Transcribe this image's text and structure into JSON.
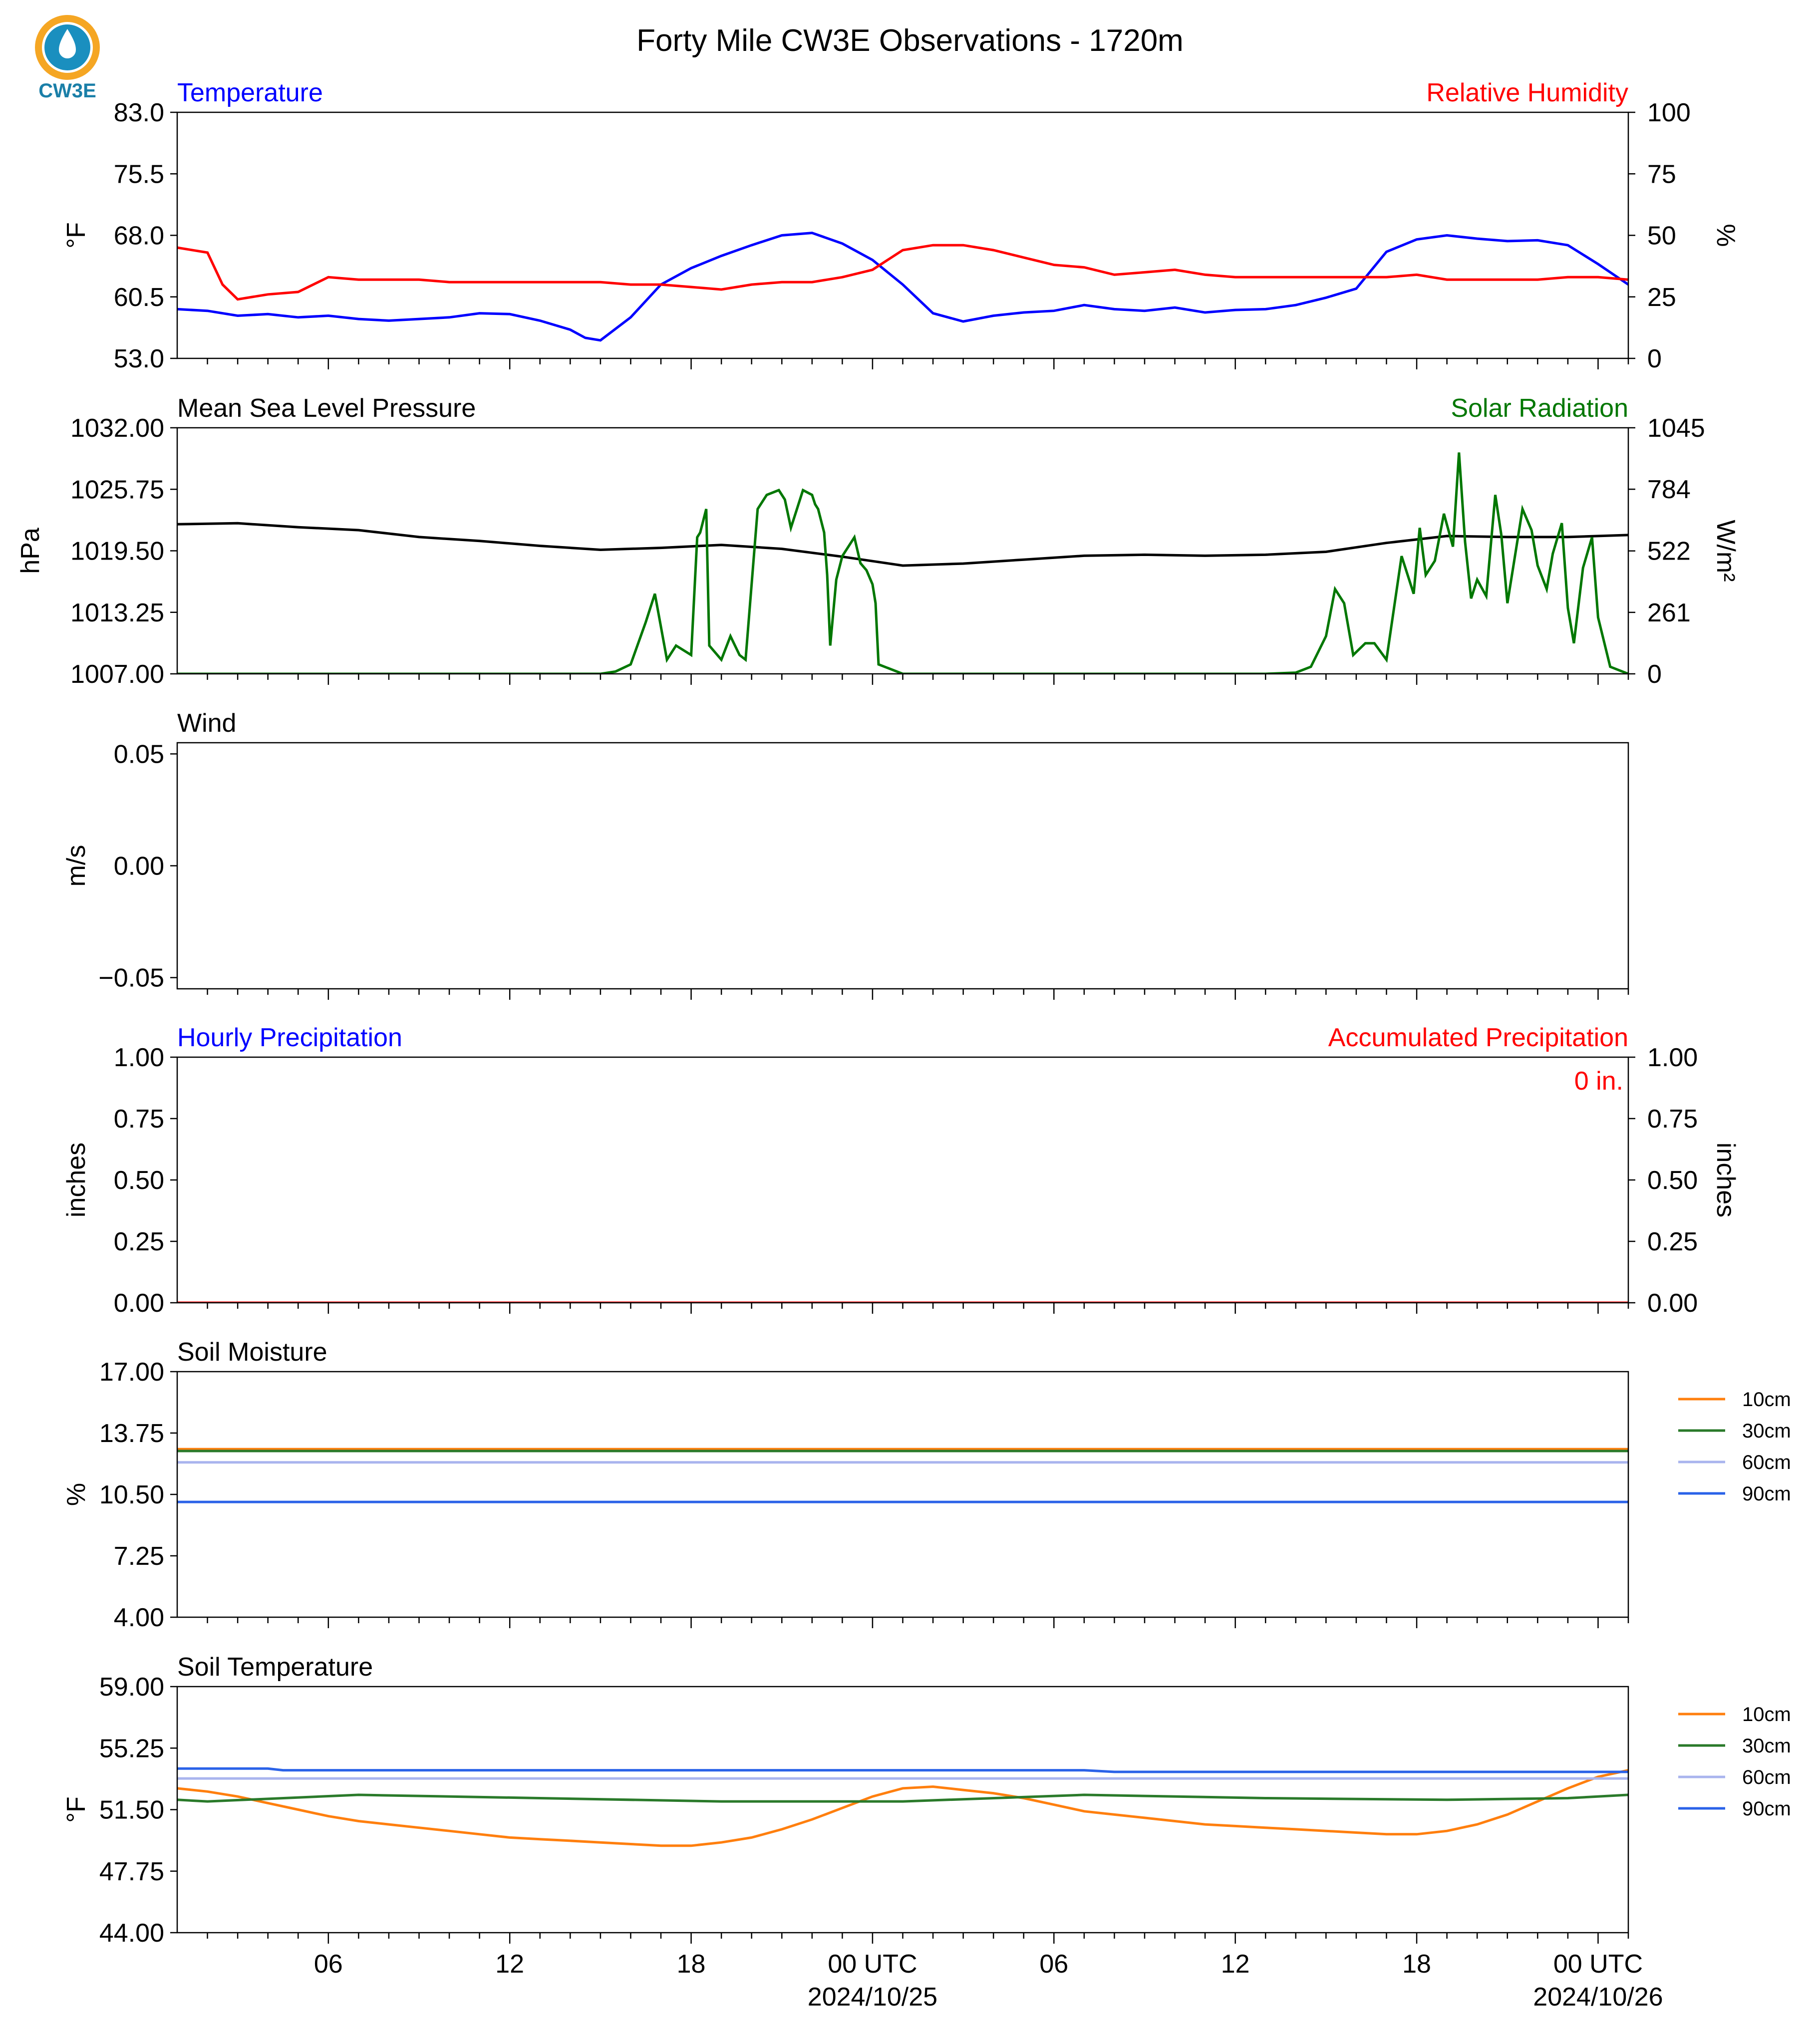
{
  "title": "Forty Mile CW3E Observations - 1720m",
  "logo": {
    "text": "CW3E",
    "icon": "cw3e-drop-logo",
    "colors": {
      "ring": "#f5a623",
      "drop": "#1a8fbf",
      "text": "#1a7fa8"
    }
  },
  "x_axis": {
    "range_hours": [
      0,
      48
    ],
    "tick_hours": [
      5,
      11,
      17,
      23,
      29,
      35,
      41,
      47
    ],
    "tick_labels": [
      "06",
      "12",
      "18",
      "00 UTC",
      "06",
      "12",
      "18",
      "00 UTC"
    ],
    "date_labels": [
      {
        "hour": 23,
        "text": "2024/10/25"
      },
      {
        "hour": 47,
        "text": "2024/10/26"
      }
    ]
  },
  "chart_data": [
    {
      "type": "line",
      "title_left": "Temperature",
      "title_right": "Relative Humidity",
      "ylabel_left": "°F",
      "ylabel_right": "%",
      "ylim_left": [
        53.0,
        83.0
      ],
      "yticks_left": [
        "53.0",
        "60.5",
        "68.0",
        "75.5",
        "83.0"
      ],
      "ylim_right": [
        0,
        100
      ],
      "yticks_right": [
        "0",
        "25",
        "50",
        "75",
        "100"
      ],
      "series": [
        {
          "name": "Temperature",
          "axis": "left",
          "color": "#0000ff",
          "x": [
            0,
            1,
            2,
            3,
            4,
            5,
            6,
            7,
            8,
            9,
            10,
            11,
            12,
            13,
            13.5,
            14,
            15,
            16,
            17,
            18,
            19,
            20,
            21,
            22,
            23,
            24,
            25,
            26,
            27,
            28,
            29,
            30,
            31,
            32,
            33,
            34,
            35,
            36,
            37,
            38,
            39,
            40,
            41,
            42,
            43,
            44,
            45,
            46,
            47,
            48
          ],
          "y": [
            59.0,
            58.8,
            58.2,
            58.4,
            58.0,
            58.2,
            57.8,
            57.6,
            57.8,
            58.0,
            58.5,
            58.4,
            57.6,
            56.5,
            55.5,
            55.2,
            58.0,
            62.0,
            64.0,
            65.5,
            66.8,
            68.0,
            68.3,
            67.0,
            65.0,
            62.0,
            58.5,
            57.5,
            58.2,
            58.6,
            58.8,
            59.5,
            59.0,
            58.8,
            59.2,
            58.6,
            58.9,
            59.0,
            59.5,
            60.4,
            61.5,
            66.0,
            67.5,
            68.0,
            67.6,
            67.3,
            67.4,
            66.8,
            64.5,
            62.0
          ]
        },
        {
          "name": "Relative Humidity",
          "axis": "right",
          "color": "#ff0000",
          "x": [
            0,
            1,
            1.5,
            2,
            3,
            4,
            5,
            6,
            7,
            8,
            9,
            10,
            11,
            12,
            13,
            14,
            15,
            16,
            17,
            18,
            19,
            20,
            21,
            22,
            23,
            24,
            25,
            26,
            27,
            28,
            29,
            30,
            31,
            32,
            33,
            34,
            35,
            36,
            37,
            38,
            39,
            40,
            41,
            42,
            43,
            44,
            45,
            46,
            47,
            48
          ],
          "y": [
            45,
            43,
            30,
            24,
            26,
            27,
            33,
            32,
            32,
            32,
            31,
            31,
            31,
            31,
            31,
            31,
            30,
            30,
            29,
            28,
            30,
            31,
            31,
            33,
            36,
            44,
            46,
            46,
            44,
            41,
            38,
            37,
            34,
            35,
            36,
            34,
            33,
            33,
            33,
            33,
            33,
            33,
            34,
            32,
            32,
            32,
            32,
            33,
            33,
            32
          ]
        }
      ]
    },
    {
      "type": "line",
      "title_left": "Mean Sea Level Pressure",
      "title_right": "Solar Radiation",
      "ylabel_left": "hPa",
      "ylabel_right": "W/m²",
      "ylim_left": [
        1007.0,
        1032.0
      ],
      "yticks_left": [
        "1007.00",
        "1013.25",
        "1019.50",
        "1025.75",
        "1032.00"
      ],
      "ylim_right": [
        0,
        1045
      ],
      "yticks_right": [
        "0",
        "261",
        "522",
        "784",
        "1045"
      ],
      "series": [
        {
          "name": "Mean Sea Level Pressure",
          "axis": "left",
          "color": "#000000",
          "x": [
            0,
            2,
            4,
            6,
            8,
            10,
            12,
            14,
            16,
            18,
            20,
            22,
            24,
            26,
            28,
            30,
            32,
            34,
            36,
            38,
            40,
            42,
            44,
            46,
            48
          ],
          "y": [
            1022.2,
            1022.3,
            1021.9,
            1021.6,
            1020.9,
            1020.5,
            1020.0,
            1019.6,
            1019.8,
            1020.1,
            1019.7,
            1018.9,
            1018.0,
            1018.2,
            1018.6,
            1019.0,
            1019.1,
            1019.0,
            1019.1,
            1019.4,
            1020.3,
            1021.0,
            1020.9,
            1020.9,
            1021.1
          ]
        },
        {
          "name": "Solar Radiation",
          "axis": "right",
          "color": "#007700",
          "x": [
            0,
            13,
            14,
            14.5,
            15,
            15.5,
            15.8,
            16,
            16.2,
            16.5,
            17,
            17.2,
            17.3,
            17.5,
            17.6,
            18,
            18.3,
            18.6,
            18.8,
            19.2,
            19.5,
            19.9,
            20.1,
            20.3,
            20.5,
            20.7,
            21,
            21.1,
            21.2,
            21.4,
            21.5,
            21.6,
            21.8,
            22,
            22.4,
            22.6,
            22.8,
            23,
            23.1,
            23.2,
            24,
            26,
            36,
            37,
            37.5,
            38,
            38.3,
            38.6,
            38.9,
            39.3,
            39.6,
            40,
            40.5,
            40.9,
            41.1,
            41.3,
            41.6,
            41.9,
            42.2,
            42.4,
            42.6,
            42.8,
            43,
            43.3,
            43.6,
            43.8,
            44,
            44.2,
            44.5,
            44.8,
            45,
            45.3,
            45.5,
            45.8,
            46,
            46.2,
            46.5,
            46.8,
            47,
            47.4,
            47.8,
            48
          ],
          "y": [
            0,
            0,
            0,
            10,
            40,
            220,
            340,
            200,
            60,
            120,
            80,
            580,
            600,
            700,
            120,
            60,
            160,
            80,
            60,
            700,
            760,
            780,
            740,
            620,
            700,
            780,
            760,
            720,
            700,
            600,
            420,
            120,
            400,
            500,
            580,
            470,
            440,
            380,
            300,
            40,
            0,
            0,
            0,
            5,
            30,
            160,
            360,
            300,
            80,
            130,
            130,
            60,
            500,
            340,
            620,
            420,
            480,
            680,
            540,
            940,
            560,
            320,
            400,
            330,
            760,
            590,
            300,
            460,
            700,
            610,
            460,
            360,
            510,
            640,
            280,
            130,
            450,
            580,
            240,
            30,
            10,
            0
          ]
        }
      ]
    },
    {
      "type": "line",
      "title_left": "Wind",
      "ylabel_left": "m/s",
      "ylim_left": [
        -0.055,
        0.055
      ],
      "yticks_left": [
        "−0.05",
        "0.00",
        "0.05"
      ],
      "series": []
    },
    {
      "type": "line",
      "title_left": "Hourly Precipitation",
      "title_right": "Accumulated Precipitation",
      "annotation": "0 in.",
      "ylabel_left": "inches",
      "ylabel_right": "inches",
      "ylim_left": [
        0.0,
        1.0
      ],
      "yticks_left": [
        "0.00",
        "0.25",
        "0.50",
        "0.75",
        "1.00"
      ],
      "ylim_right": [
        0.0,
        1.0
      ],
      "yticks_right": [
        "0.00",
        "0.25",
        "0.50",
        "0.75",
        "1.00"
      ],
      "series": [
        {
          "name": "Hourly Precipitation",
          "axis": "left",
          "color": "#0000ff",
          "x": [
            0,
            48
          ],
          "y": [
            0.0,
            0.0
          ]
        },
        {
          "name": "Accumulated Precipitation",
          "axis": "right",
          "color": "#ff0000",
          "x": [
            0,
            48
          ],
          "y": [
            0.0,
            0.0
          ]
        }
      ]
    },
    {
      "type": "line",
      "title_left": "Soil Moisture",
      "ylabel_left": "%",
      "ylim_left": [
        4.0,
        17.0
      ],
      "yticks_left": [
        "4.00",
        "7.25",
        "10.50",
        "13.75",
        "17.00"
      ],
      "legend": [
        "10cm",
        "30cm",
        "60cm",
        "90cm"
      ],
      "legend_placement": "right-outside",
      "series": [
        {
          "name": "10cm",
          "color": "#ff7f0e",
          "x": [
            0,
            48
          ],
          "y": [
            12.9,
            12.9
          ]
        },
        {
          "name": "30cm",
          "color": "#2a7a2a",
          "x": [
            0,
            48
          ],
          "y": [
            12.8,
            12.8
          ]
        },
        {
          "name": "60cm",
          "color": "#a9b4ee",
          "x": [
            0,
            48
          ],
          "y": [
            12.2,
            12.2
          ]
        },
        {
          "name": "90cm",
          "color": "#2a62e8",
          "x": [
            0,
            48
          ],
          "y": [
            10.1,
            10.1
          ]
        }
      ]
    },
    {
      "type": "line",
      "title_left": "Soil Temperature",
      "ylabel_left": "°F",
      "ylim_left": [
        44.0,
        59.0
      ],
      "yticks_left": [
        "44.00",
        "47.75",
        "51.50",
        "55.25",
        "59.00"
      ],
      "legend": [
        "10cm",
        "30cm",
        "60cm",
        "90cm"
      ],
      "legend_placement": "right-outside",
      "series": [
        {
          "name": "10cm",
          "color": "#ff7f0e",
          "x": [
            0,
            1,
            2,
            3,
            4,
            5,
            6,
            7,
            8,
            9,
            10,
            11,
            12,
            13,
            14,
            15,
            16,
            17,
            18,
            19,
            20,
            21,
            22,
            23,
            24,
            25,
            26,
            27,
            28,
            29,
            30,
            31,
            32,
            33,
            34,
            35,
            36,
            37,
            38,
            39,
            40,
            41,
            42,
            43,
            44,
            45,
            46,
            47,
            48
          ],
          "y": [
            52.8,
            52.6,
            52.3,
            51.9,
            51.5,
            51.1,
            50.8,
            50.6,
            50.4,
            50.2,
            50.0,
            49.8,
            49.7,
            49.6,
            49.5,
            49.4,
            49.3,
            49.3,
            49.5,
            49.8,
            50.3,
            50.9,
            51.6,
            52.3,
            52.8,
            52.9,
            52.7,
            52.5,
            52.2,
            51.8,
            51.4,
            51.2,
            51.0,
            50.8,
            50.6,
            50.5,
            50.4,
            50.3,
            50.2,
            50.1,
            50.0,
            50.0,
            50.2,
            50.6,
            51.2,
            52.0,
            52.8,
            53.5,
            53.9
          ]
        },
        {
          "name": "30cm",
          "color": "#2a7a2a",
          "x": [
            0,
            1,
            6,
            12,
            18,
            24,
            30,
            36,
            42,
            46,
            48
          ],
          "y": [
            52.1,
            52.0,
            52.4,
            52.2,
            52.0,
            52.0,
            52.4,
            52.2,
            52.1,
            52.2,
            52.4
          ]
        },
        {
          "name": "60cm",
          "color": "#a9b4ee",
          "x": [
            0,
            48
          ],
          "y": [
            53.4,
            53.4
          ]
        },
        {
          "name": "90cm",
          "color": "#2a62e8",
          "x": [
            0,
            3,
            3.5,
            30,
            31,
            48
          ],
          "y": [
            54.0,
            54.0,
            53.9,
            53.9,
            53.8,
            53.8
          ]
        }
      ]
    }
  ]
}
